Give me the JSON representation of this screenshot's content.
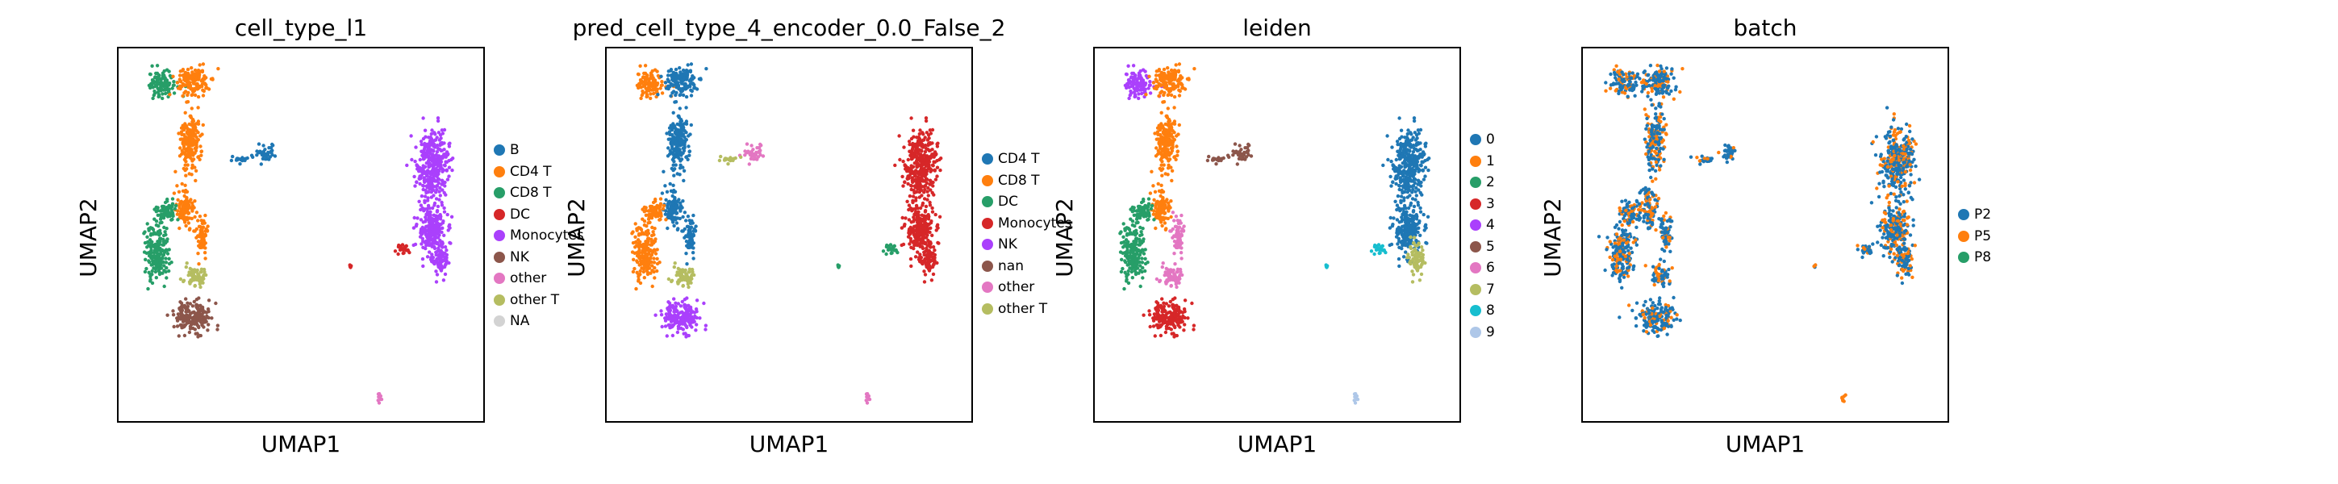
{
  "panels": [
    {
      "title": "cell_type_l1",
      "xlabel": "UMAP1",
      "ylabel": "UMAP2",
      "legend": [
        {
          "label": "B",
          "color": "#1f77b4"
        },
        {
          "label": "CD4 T",
          "color": "#ff7f0e"
        },
        {
          "label": "CD8 T",
          "color": "#279e68"
        },
        {
          "label": "DC",
          "color": "#d62728"
        },
        {
          "label": "Monocytes",
          "color": "#aa40fc"
        },
        {
          "label": "NK",
          "color": "#8c564b"
        },
        {
          "label": "other",
          "color": "#e377c2"
        },
        {
          "label": "other T",
          "color": "#b5bd61"
        },
        {
          "label": "NA",
          "color": "#d3d3d3"
        }
      ],
      "clusters": [
        "CD8 T",
        "CD4 T",
        "CD4 T",
        "B",
        "B",
        "CD4 T",
        "CD4 T",
        "other T",
        "CD8 T",
        "CD8 T",
        "NK",
        "Monocytes",
        "Monocytes",
        "Monocytes",
        "DC",
        "DC",
        "other"
      ]
    },
    {
      "title": "pred_cell_type_4_encoder_0.0_False_2",
      "xlabel": "UMAP1",
      "ylabel": "UMAP2",
      "legend": [
        {
          "label": "CD4 T",
          "color": "#1f77b4"
        },
        {
          "label": "CD8 T",
          "color": "#ff7f0e"
        },
        {
          "label": "DC",
          "color": "#279e68"
        },
        {
          "label": "Monocytes",
          "color": "#d62728"
        },
        {
          "label": "NK",
          "color": "#aa40fc"
        },
        {
          "label": "nan",
          "color": "#8c564b"
        },
        {
          "label": "other",
          "color": "#e377c2"
        },
        {
          "label": "other T",
          "color": "#b5bd61"
        }
      ],
      "clusters": [
        "CD8 T",
        "CD4 T",
        "CD4 T",
        "other",
        "other T",
        "CD4 T",
        "CD4 T",
        "other T",
        "CD8 T",
        "CD8 T",
        "NK",
        "Monocytes",
        "Monocytes",
        "Monocytes",
        "DC",
        "DC",
        "other"
      ]
    },
    {
      "title": "leiden",
      "xlabel": "UMAP1",
      "ylabel": "UMAP2",
      "legend": [
        {
          "label": "0",
          "color": "#1f77b4"
        },
        {
          "label": "1",
          "color": "#ff7f0e"
        },
        {
          "label": "2",
          "color": "#279e68"
        },
        {
          "label": "3",
          "color": "#d62728"
        },
        {
          "label": "4",
          "color": "#aa40fc"
        },
        {
          "label": "5",
          "color": "#8c564b"
        },
        {
          "label": "6",
          "color": "#e377c2"
        },
        {
          "label": "7",
          "color": "#b5bd61"
        },
        {
          "label": "8",
          "color": "#17becf"
        },
        {
          "label": "9",
          "color": "#aec7e8"
        }
      ],
      "clusters": [
        "4",
        "1",
        "1",
        "5",
        "5",
        "1",
        "6",
        "6",
        "2",
        "2",
        "3",
        "0",
        "0",
        "7",
        "8",
        "8",
        "9"
      ]
    },
    {
      "title": "batch",
      "xlabel": "UMAP1",
      "ylabel": "UMAP2",
      "legend": [
        {
          "label": "P2",
          "color": "#1f77b4"
        },
        {
          "label": "P5",
          "color": "#ff7f0e"
        },
        {
          "label": "P8",
          "color": "#279e68"
        }
      ],
      "clusters": [
        "P2",
        "P2",
        "P2",
        "P2",
        "P2",
        "P2",
        "P2",
        "P2",
        "P2",
        "P2",
        "P2",
        "P2",
        "P2",
        "P2",
        "P2",
        "P2",
        "P5"
      ]
    }
  ],
  "chart_data": {
    "type": "scatter",
    "description_axes": "UMAP embedding, axes unticked",
    "clusters": [
      {
        "id": "c1",
        "x": -9.2,
        "y": 8.6,
        "sx": 0.7,
        "sy": 0.6
      },
      {
        "id": "c2",
        "x": -7.4,
        "y": 8.7,
        "sx": 0.8,
        "sy": 0.7
      },
      {
        "id": "c3",
        "x": -7.6,
        "y": 5.6,
        "sx": 0.5,
        "sy": 1.4
      },
      {
        "id": "c4",
        "x": -3.6,
        "y": 4.9,
        "sx": 0.45,
        "sy": 0.35
      },
      {
        "id": "c5",
        "x": -4.9,
        "y": 4.6,
        "sx": 0.5,
        "sy": 0.15
      },
      {
        "id": "c6",
        "x": -7.9,
        "y": 2.0,
        "sx": 0.4,
        "sy": 1.0
      },
      {
        "id": "c7",
        "x": -7.0,
        "y": 0.6,
        "sx": 0.3,
        "sy": 0.9
      },
      {
        "id": "c8",
        "x": -7.3,
        "y": -1.6,
        "sx": 0.5,
        "sy": 0.5
      },
      {
        "id": "c9",
        "x": -9.4,
        "y": -0.4,
        "sx": 0.6,
        "sy": 1.3
      },
      {
        "id": "c10",
        "x": -8.9,
        "y": 1.8,
        "sx": 0.5,
        "sy": 0.6
      },
      {
        "id": "c11",
        "x": -7.5,
        "y": -3.8,
        "sx": 1.0,
        "sy": 0.7
      },
      {
        "id": "c12",
        "x": 5.6,
        "y": 4.4,
        "sx": 0.8,
        "sy": 1.6
      },
      {
        "id": "c13",
        "x": 5.5,
        "y": 0.9,
        "sx": 0.7,
        "sy": 1.2
      },
      {
        "id": "c14",
        "x": 6.0,
        "y": -0.8,
        "sx": 0.4,
        "sy": 0.8
      },
      {
        "id": "c15",
        "x": 3.9,
        "y": -0.2,
        "sx": 0.35,
        "sy": 0.25
      },
      {
        "id": "c16",
        "x": 1.1,
        "y": -1.1,
        "sx": 0.05,
        "sy": 0.05
      },
      {
        "id": "c17",
        "x": 2.7,
        "y": -8.1,
        "sx": 0.15,
        "sy": 0.2
      }
    ],
    "xlim": [
      -11.5,
      8.5
    ],
    "ylim": [
      -9.5,
      10.5
    ],
    "grid": false,
    "legend_position": "right"
  }
}
